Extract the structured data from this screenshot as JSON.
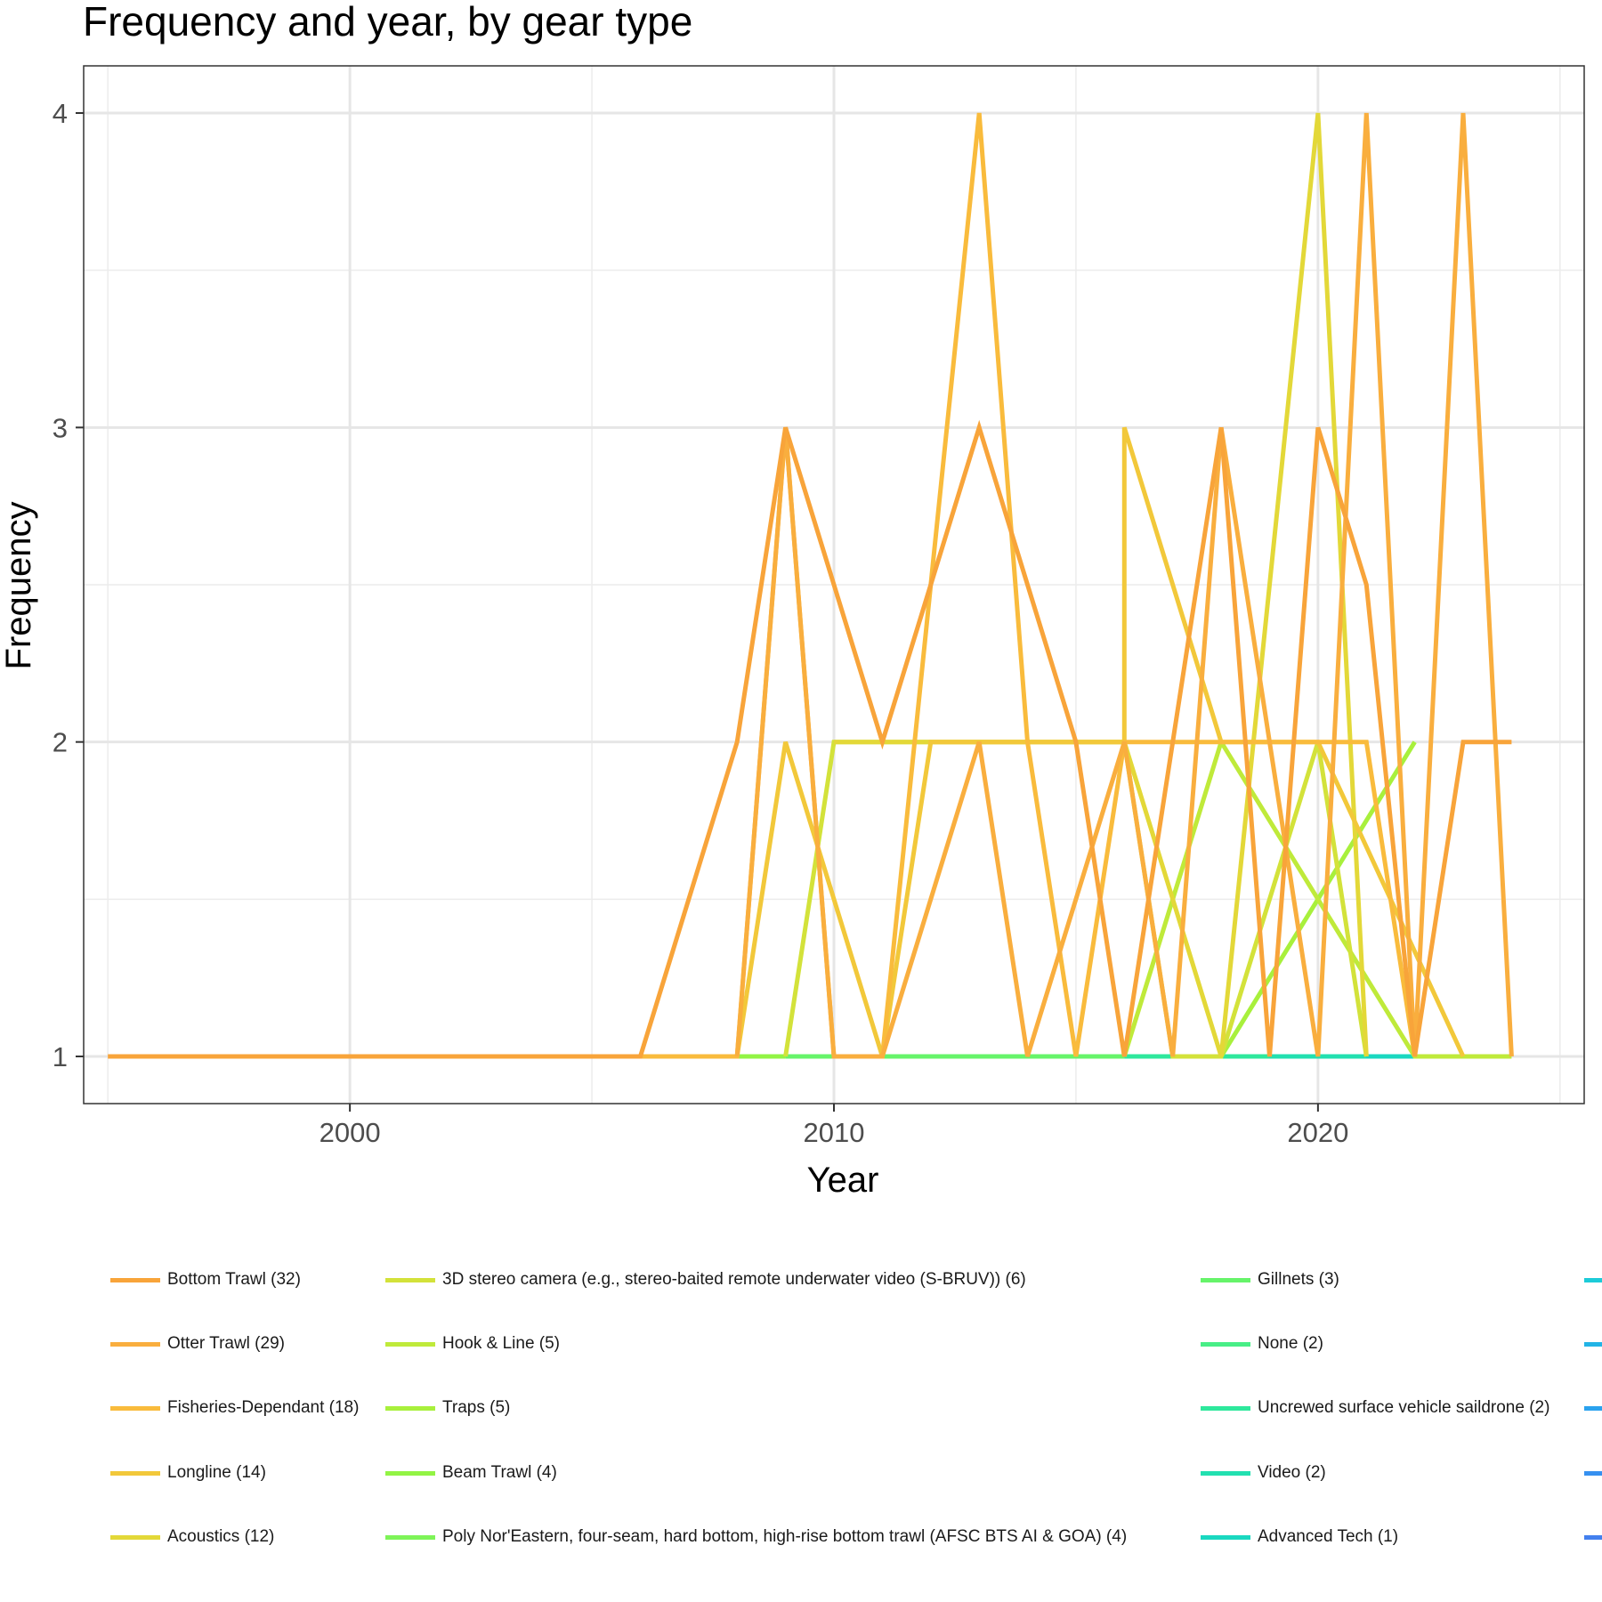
{
  "chart_data": {
    "type": "line",
    "title": "Frequency and year, by gear type",
    "xlabel": "Year",
    "ylabel": "Frequency",
    "xlim": [
      1994.5,
      2025.5
    ],
    "ylim": [
      0.85,
      4.15
    ],
    "x_ticks": [
      2000,
      2010,
      2020
    ],
    "y_ticks": [
      1,
      2,
      3,
      4
    ],
    "grid": true,
    "legend_position": "bottom",
    "series": [
      {
        "name": "Bottom Trawl (32)",
        "color": "#f8a43a",
        "points": [
          [
            1995,
            1
          ],
          [
            2000,
            1
          ],
          [
            2006,
            1
          ],
          [
            2008,
            2
          ],
          [
            2009,
            3
          ],
          [
            2010,
            2.5
          ],
          [
            2011,
            2
          ],
          [
            2012,
            2.5
          ],
          [
            2013,
            3
          ],
          [
            2014,
            2.5
          ],
          [
            2015,
            2
          ],
          [
            2016,
            1
          ],
          [
            2017,
            2
          ],
          [
            2018,
            3
          ],
          [
            2019,
            1
          ],
          [
            2020,
            3
          ],
          [
            2021,
            2.5
          ],
          [
            2022,
            1
          ],
          [
            2023,
            2
          ],
          [
            2024,
            2
          ]
        ]
      },
      {
        "name": "Otter Trawl (29)",
        "color": "#f9ae3e",
        "points": [
          [
            2008,
            1
          ],
          [
            2009,
            3
          ],
          [
            2010,
            1
          ],
          [
            2011,
            1
          ],
          [
            2013,
            2
          ],
          [
            2014,
            1
          ],
          [
            2016,
            2
          ],
          [
            2017,
            1
          ],
          [
            2018,
            3
          ],
          [
            2019,
            2
          ],
          [
            2020,
            1
          ],
          [
            2021,
            4
          ],
          [
            2022,
            1
          ],
          [
            2023,
            4
          ],
          [
            2024,
            1
          ]
        ]
      },
      {
        "name": "Fisheries-Dependant (18)",
        "color": "#f9bb3c",
        "points": [
          [
            2000,
            1
          ],
          [
            2002,
            1
          ],
          [
            2008,
            1
          ],
          [
            2009,
            3
          ],
          [
            2010,
            1
          ],
          [
            2011,
            1
          ],
          [
            2013,
            4
          ],
          [
            2014,
            2
          ],
          [
            2015,
            1
          ],
          [
            2016,
            2
          ],
          [
            2018,
            2
          ],
          [
            2021,
            2
          ],
          [
            2022,
            1
          ]
        ]
      },
      {
        "name": "Longline (14)",
        "color": "#f2c83a",
        "points": [
          [
            2008,
            1
          ],
          [
            2009,
            2
          ],
          [
            2011,
            1
          ],
          [
            2012,
            2
          ],
          [
            2016,
            2
          ],
          [
            2016,
            3
          ],
          [
            2018,
            2
          ],
          [
            2020,
            2
          ],
          [
            2023,
            1
          ]
        ]
      },
      {
        "name": "Acoustics (12)",
        "color": "#e3d838",
        "points": [
          [
            2010,
            2
          ],
          [
            2012,
            2
          ],
          [
            2014,
            2
          ],
          [
            2016,
            2
          ],
          [
            2018,
            1
          ],
          [
            2020,
            4
          ],
          [
            2021,
            1
          ]
        ]
      },
      {
        "name": "3D stereo camera (e.g., stereo-baited remote underwater video (S-BRUV)) (6)",
        "color": "#d3e23a",
        "points": [
          [
            2009,
            1
          ],
          [
            2010,
            2
          ],
          [
            2012,
            2
          ],
          [
            2016,
            2
          ],
          [
            2017,
            1
          ],
          [
            2018,
            1
          ],
          [
            2020,
            2
          ],
          [
            2021,
            1
          ]
        ]
      },
      {
        "name": "Hook & Line (5)",
        "color": "#bfea3a",
        "points": [
          [
            2016,
            1
          ],
          [
            2018,
            2
          ],
          [
            2022,
            1
          ],
          [
            2024,
            1
          ]
        ]
      },
      {
        "name": "Traps (5)",
        "color": "#a8f03c",
        "points": [
          [
            2018,
            1
          ],
          [
            2022,
            2
          ]
        ]
      },
      {
        "name": "Beam Trawl (4)",
        "color": "#92f444",
        "points": [
          [
            2006,
            1
          ],
          [
            2009,
            1
          ]
        ]
      },
      {
        "name": "Poly Nor'Eastern, four-seam, hard bottom, high-rise bottom trawl (AFSC BTS AI & GOA) (4)",
        "color": "#7ef458",
        "points": [
          [
            2002,
            1
          ],
          [
            2008,
            1
          ]
        ]
      },
      {
        "name": "Gillnets (3)",
        "color": "#66f46a",
        "points": [
          [
            2009,
            1
          ],
          [
            2016,
            1
          ]
        ]
      },
      {
        "name": "None (2)",
        "color": "#48ee86",
        "points": [
          [
            2012,
            1
          ],
          [
            2016,
            1
          ]
        ]
      },
      {
        "name": "Uncrewed surface vehicle saildrone (2)",
        "color": "#2ee89c",
        "points": [
          [
            2016,
            1
          ],
          [
            2019,
            1
          ]
        ]
      },
      {
        "name": "Video (2)",
        "color": "#22e0b0",
        "points": [
          [
            2018,
            1
          ],
          [
            2021,
            1
          ]
        ]
      },
      {
        "name": "Advanced Tech (1)",
        "color": "#1ad8c0",
        "points": [
          [
            2019,
            1
          ],
          [
            2023,
            1
          ]
        ]
      },
      {
        "name": "",
        "color": "#1ccbd8",
        "points": []
      },
      {
        "name": "",
        "color": "#22b4e6",
        "points": []
      },
      {
        "name": "",
        "color": "#2aa2ee",
        "points": []
      },
      {
        "name": "",
        "color": "#3690f0",
        "points": []
      },
      {
        "name": "",
        "color": "#4380ee",
        "points": []
      }
    ]
  }
}
